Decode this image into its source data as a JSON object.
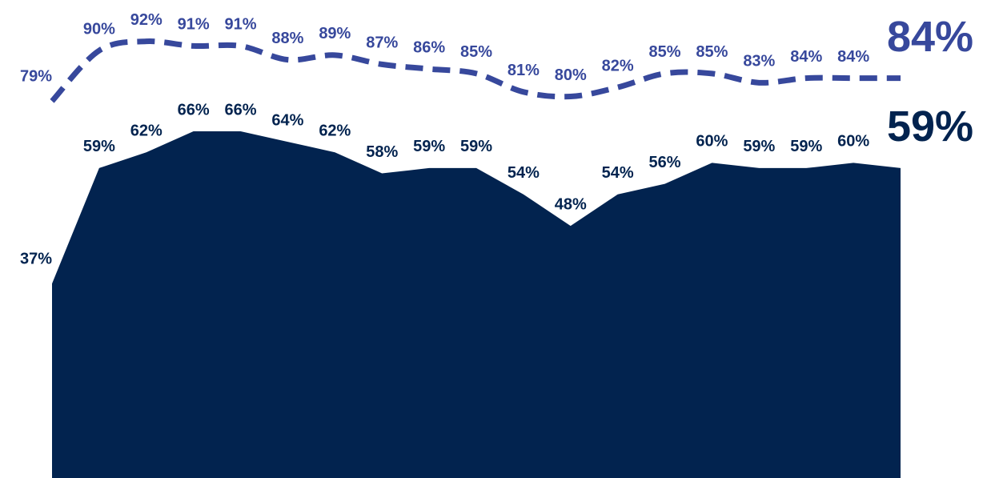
{
  "chart_data": {
    "type": "area_line",
    "categories": [
      null,
      null,
      null,
      null,
      null,
      null,
      null,
      null,
      null,
      null,
      null,
      null,
      null,
      null,
      null,
      null,
      null,
      null,
      null
    ],
    "ylim": [
      0,
      91
    ],
    "y2lim": [
      -3,
      101
    ],
    "series": [
      {
        "name": null,
        "type": "area",
        "color": "#02234f",
        "values": [
          37,
          59,
          62,
          66,
          66,
          64,
          62,
          58,
          59,
          59,
          54,
          48,
          54,
          56,
          60,
          59,
          59,
          60,
          59
        ],
        "value_labels": [
          "37%",
          "59%",
          "62%",
          "66%",
          "66%",
          "64%",
          "62%",
          "58%",
          "59%",
          "59%",
          "54%",
          "48%",
          "54%",
          "56%",
          "60%",
          "59%",
          "59%",
          "60%",
          "59%"
        ]
      },
      {
        "name": null,
        "type": "line",
        "axis": "y2",
        "dashed": true,
        "color": "#37489c",
        "values": [
          79,
          90,
          92,
          91,
          91,
          88,
          89,
          87,
          86,
          85,
          81,
          80,
          82,
          85,
          85,
          83,
          84,
          84,
          84
        ],
        "value_labels": [
          "79%",
          "90%",
          "92%",
          "91%",
          "91%",
          "88%",
          "89%",
          "87%",
          "86%",
          "85%",
          "81%",
          "80%",
          "82%",
          "85%",
          "85%",
          "83%",
          "84%",
          "84%",
          "84%"
        ]
      }
    ]
  }
}
